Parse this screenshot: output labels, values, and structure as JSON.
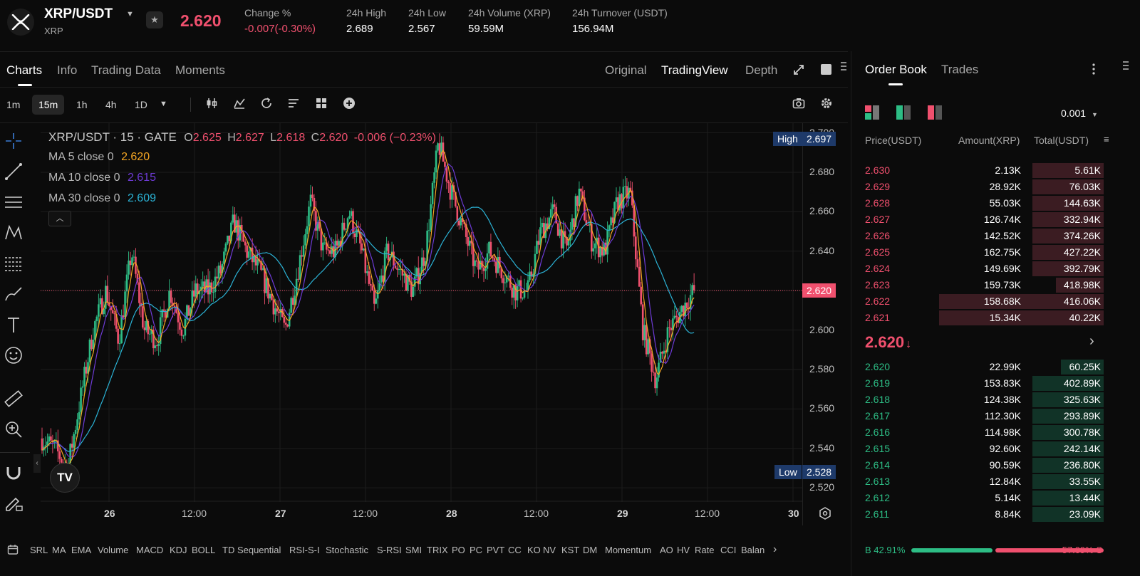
{
  "header": {
    "pair": "XRP/USDT",
    "base": "XRP",
    "last_price": "2.620",
    "stats": [
      {
        "label": "Change %",
        "value": "-0.007(-0.30%)",
        "color": "red"
      },
      {
        "label": "24h High",
        "value": "2.689"
      },
      {
        "label": "24h Low",
        "value": "2.567"
      },
      {
        "label": "24h Volume (XRP)",
        "value": "59.59M"
      },
      {
        "label": "24h Turnover (USDT)",
        "value": "156.94M"
      }
    ]
  },
  "chart_panel": {
    "tabs": [
      "Charts",
      "Info",
      "Trading Data",
      "Moments"
    ],
    "view_modes": [
      "Original",
      "TradingView",
      "Depth"
    ],
    "timeframes": [
      "1m",
      "15m",
      "1h",
      "4h",
      "1D"
    ],
    "active_timeframe": "15m"
  },
  "legend": {
    "title": "XRP/USDT · 15 · GATE",
    "ohlc": {
      "o_label": "O",
      "o": "2.625",
      "h_label": "H",
      "h": "2.627",
      "l_label": "L",
      "l": "2.618",
      "c_label": "C",
      "c": "2.620",
      "change": "-0.006 (−0.23%)"
    },
    "ma": [
      {
        "label": "MA 5 close 0",
        "value": "2.620",
        "color": "#f5a623"
      },
      {
        "label": "MA 10 close 0",
        "value": "2.615",
        "color": "#6e3bd6"
      },
      {
        "label": "MA 30 close 0",
        "value": "2.609",
        "color": "#2bb3d6"
      }
    ]
  },
  "chart_data": {
    "type": "candlestick",
    "ylim": [
      2.515,
      2.702
    ],
    "yticks": [
      "2.520",
      "2.540",
      "2.560",
      "2.580",
      "2.600",
      "2.620",
      "2.640",
      "2.660",
      "2.680",
      "2.700"
    ],
    "xticks": [
      "26",
      "12:00",
      "27",
      "12:00",
      "28",
      "12:00",
      "29",
      "12:00",
      "30"
    ],
    "high_label": "High",
    "high_value": "2.697",
    "low_label": "Low",
    "low_value": "2.528",
    "current_value": "2.620",
    "anchors": [
      2.545,
      2.54,
      2.53,
      2.565,
      2.6,
      2.62,
      2.595,
      2.64,
      2.6,
      2.595,
      2.62,
      2.6,
      2.62,
      2.62,
      2.63,
      2.655,
      2.64,
      2.63,
      2.615,
      2.6,
      2.63,
      2.665,
      2.64,
      2.64,
      2.66,
      2.64,
      2.61,
      2.64,
      2.63,
      2.62,
      2.64,
      2.695,
      2.67,
      2.65,
      2.63,
      2.64,
      2.63,
      2.62,
      2.62,
      2.65,
      2.66,
      2.64,
      2.67,
      2.645,
      2.64,
      2.665,
      2.67,
      2.6,
      2.575,
      2.6,
      2.61,
      2.62
    ]
  },
  "indicators": [
    "SRL",
    "MA",
    "EMA",
    "Volume",
    "MACD",
    "KDJ",
    "BOLL",
    "TD Sequential",
    "RSI-S-I",
    "Stochastic",
    "S-RSI",
    "SMI",
    "TRIX",
    "PO",
    "PC",
    "PVT",
    "CC",
    "KO",
    "NV",
    "KST",
    "DM",
    "Momentum",
    "AO",
    "HV",
    "Rate",
    "CCI",
    "Balan"
  ],
  "orderbook": {
    "tabs": [
      "Order Book",
      "Trades"
    ],
    "precision": "0.001",
    "headers": [
      "Price(USDT)",
      "Amount(XRP)",
      "Total(USDT)"
    ],
    "asks": [
      {
        "price": "2.630",
        "amount": "2.13K",
        "total": "5.61K",
        "depth": 0.27
      },
      {
        "price": "2.629",
        "amount": "28.92K",
        "total": "76.03K",
        "depth": 0.27
      },
      {
        "price": "2.628",
        "amount": "55.03K",
        "total": "144.63K",
        "depth": 0.27
      },
      {
        "price": "2.627",
        "amount": "126.74K",
        "total": "332.94K",
        "depth": 0.27
      },
      {
        "price": "2.626",
        "amount": "142.52K",
        "total": "374.26K",
        "depth": 0.27
      },
      {
        "price": "2.625",
        "amount": "162.75K",
        "total": "427.22K",
        "depth": 0.27
      },
      {
        "price": "2.624",
        "amount": "149.69K",
        "total": "392.79K",
        "depth": 0.27
      },
      {
        "price": "2.623",
        "amount": "159.73K",
        "total": "418.98K",
        "depth": 0.18
      },
      {
        "price": "2.622",
        "amount": "158.68K",
        "total": "416.06K",
        "depth": 0.62
      },
      {
        "price": "2.621",
        "amount": "15.34K",
        "total": "40.22K",
        "depth": 0.62
      }
    ],
    "mid_price": "2.620",
    "mid_arrow": "↓",
    "bids": [
      {
        "price": "2.620",
        "amount": "22.99K",
        "total": "60.25K",
        "depth": 0.16
      },
      {
        "price": "2.619",
        "amount": "153.83K",
        "total": "402.89K",
        "depth": 0.27
      },
      {
        "price": "2.618",
        "amount": "124.38K",
        "total": "325.63K",
        "depth": 0.27
      },
      {
        "price": "2.617",
        "amount": "112.30K",
        "total": "293.89K",
        "depth": 0.27
      },
      {
        "price": "2.616",
        "amount": "114.98K",
        "total": "300.78K",
        "depth": 0.27
      },
      {
        "price": "2.615",
        "amount": "92.60K",
        "total": "242.14K",
        "depth": 0.27
      },
      {
        "price": "2.614",
        "amount": "90.59K",
        "total": "236.80K",
        "depth": 0.27
      },
      {
        "price": "2.613",
        "amount": "12.84K",
        "total": "33.55K",
        "depth": 0.27
      },
      {
        "price": "2.612",
        "amount": "5.14K",
        "total": "13.44K",
        "depth": 0.27
      },
      {
        "price": "2.611",
        "amount": "8.84K",
        "total": "23.09K",
        "depth": 0.27
      }
    ],
    "buy_ratio_label": "B 42.91%",
    "sell_ratio_label": "57.09% S",
    "buy_ratio": 0.4291
  },
  "colors": {
    "up": "#2dbd85",
    "down": "#f0506e",
    "bg": "#0b0b0b",
    "grid": "#1c1c1c"
  }
}
